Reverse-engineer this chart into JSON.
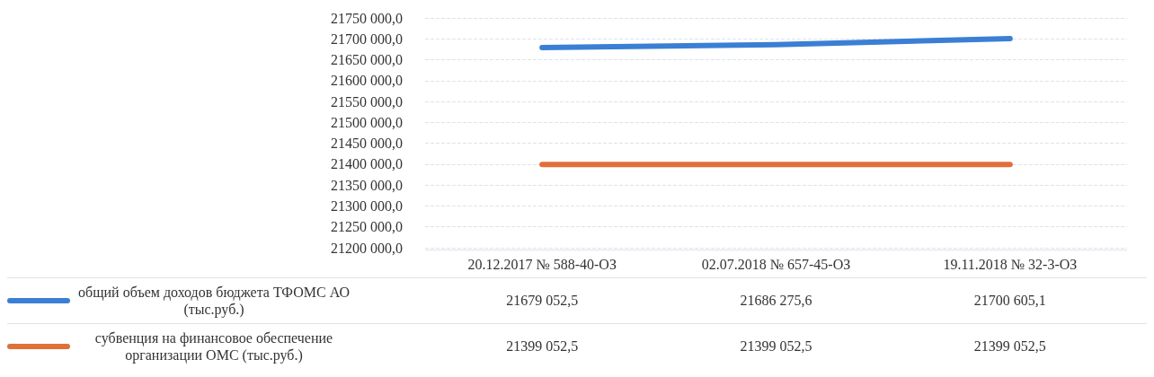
{
  "chart_data": {
    "type": "line",
    "categories": [
      "20.12.2017 № 588-40-ОЗ",
      "02.07.2018 № 657-45-ОЗ",
      "19.11.2018 № 32-3-ОЗ"
    ],
    "series": [
      {
        "name": "общий объем доходов бюджета ТФОМС АО (тыс.руб.)",
        "color": "#3b7fd4",
        "values": [
          21679052.5,
          21686275.6,
          21700605.1
        ],
        "value_labels": [
          "21679 052,5",
          "21686 275,6",
          "21700 605,1"
        ]
      },
      {
        "name": "субвенция на финансовое обеспечение организации ОМС (тыс.руб.)",
        "color": "#e07038",
        "values": [
          21399052.5,
          21399052.5,
          21399052.5
        ],
        "value_labels": [
          "21399 052,5",
          "21399 052,5",
          "21399 052,5"
        ]
      }
    ],
    "ylim": [
      21200000,
      21750000
    ],
    "yticks": [
      {
        "value": 21200000,
        "label": "21200 000,0"
      },
      {
        "value": 21250000,
        "label": "21250 000,0"
      },
      {
        "value": 21300000,
        "label": "21300 000,0"
      },
      {
        "value": 21350000,
        "label": "21350 000,0"
      },
      {
        "value": 21400000,
        "label": "21400 000,0"
      },
      {
        "value": 21450000,
        "label": "21450 000,0"
      },
      {
        "value": 21500000,
        "label": "21500 000,0"
      },
      {
        "value": 21550000,
        "label": "21550 000,0"
      },
      {
        "value": 21600000,
        "label": "21600 000,0"
      },
      {
        "value": 21650000,
        "label": "21650 000,0"
      },
      {
        "value": 21700000,
        "label": "21700 000,0"
      },
      {
        "value": 21750000,
        "label": "21750 000,0"
      }
    ],
    "grid": "y",
    "legend": "bottom left",
    "marker": "none",
    "line_style": "solid"
  }
}
